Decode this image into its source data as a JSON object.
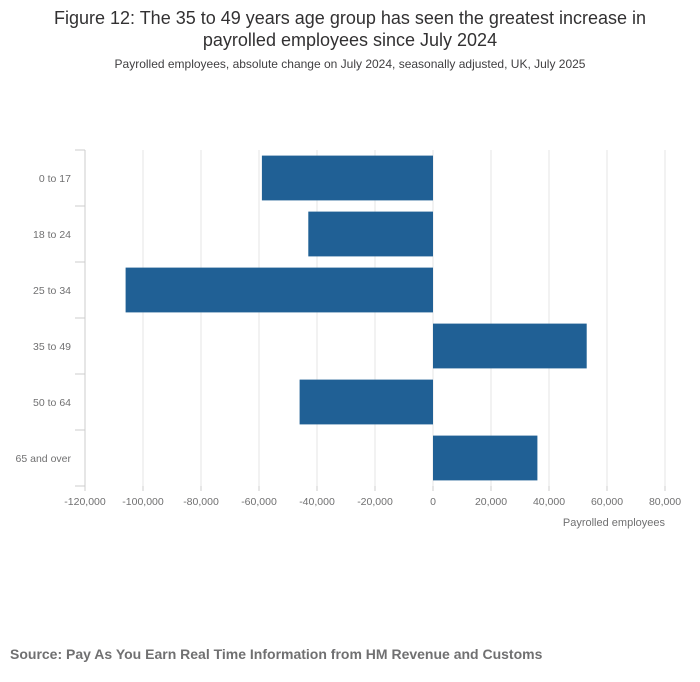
{
  "title": "Figure 12: The 35 to 49 years age group has seen the greatest increase in payrolled employees since July 2024",
  "subtitle": "Payrolled employees, absolute change on July 2024, seasonally adjusted, UK, July 2025",
  "source": "Source: Pay As You Earn Real Time Information from HM Revenue and Customs",
  "colors": {
    "bar": "#206095",
    "grid": "#e6e6e6",
    "axis": "#cccccc",
    "text": "#707071"
  },
  "chart_data": {
    "type": "bar",
    "orientation": "horizontal",
    "categories": [
      "0 to 17",
      "18 to 24",
      "25 to 34",
      "35 to 49",
      "50 to 64",
      "65 and over"
    ],
    "values": [
      -59000,
      -43000,
      -106000,
      53000,
      -46000,
      36000
    ],
    "xlabel": "Payrolled employees",
    "ylabel": "",
    "xlim": [
      -120000,
      80000
    ],
    "xticks": [
      "-120,000",
      "-100,000",
      "-80,000",
      "-60,000",
      "-40,000",
      "-20,000",
      "0",
      "20,000",
      "40,000",
      "60,000",
      "80,000"
    ],
    "grid": true,
    "legend": "none"
  }
}
